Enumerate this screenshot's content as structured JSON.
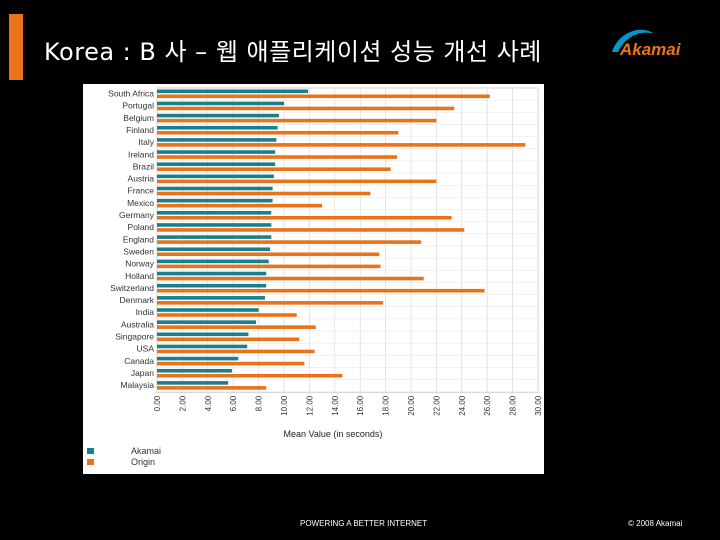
{
  "slide": {
    "title": "Korea : B 사 – 웹 애플리케이션 성능 개선 사례",
    "accent_color": "#e8731a",
    "logo_text": "Akamai",
    "logo_color": "#0099cc",
    "footer_tagline": "POWERING A BETTER INTERNET",
    "footer_copyright": "© 2008 Akamai"
  },
  "chart_data": {
    "type": "bar",
    "orientation": "horizontal",
    "xlabel": "Mean Value (in seconds)",
    "xlim": [
      0,
      30
    ],
    "x_ticks": [
      "0.00",
      "2.00",
      "4.00",
      "6.00",
      "8.00",
      "10.00",
      "12.00",
      "14.00",
      "16.00",
      "18.00",
      "20.00",
      "22.00",
      "24.00",
      "26.00",
      "28.00",
      "30.00"
    ],
    "grid": true,
    "legend_position": "bottom-left",
    "categories": [
      "South Africa",
      "Portugal",
      "Belgium",
      "Finland",
      "Italy",
      "Ireland",
      "Brazil",
      "Austria",
      "France",
      "Mexico",
      "Germany",
      "Poland",
      "England",
      "Sweden",
      "Norway",
      "Holland",
      "Switzerland",
      "Denmark",
      "India",
      "Australia",
      "Singapore",
      "USA",
      "Canada",
      "Japan",
      "Malaysia"
    ],
    "series": [
      {
        "name": "Akamai",
        "color": "#1a7f8c",
        "values": [
          11.9,
          10.0,
          9.6,
          9.5,
          9.4,
          9.3,
          9.3,
          9.2,
          9.1,
          9.1,
          9.0,
          9.0,
          9.0,
          8.9,
          8.8,
          8.6,
          8.6,
          8.5,
          8.0,
          7.8,
          7.2,
          7.1,
          6.4,
          5.9,
          5.6
        ]
      },
      {
        "name": "Origin",
        "color": "#e8731a",
        "values": [
          26.2,
          23.4,
          22.0,
          19.0,
          29.0,
          18.9,
          18.4,
          22.0,
          16.8,
          13.0,
          23.2,
          24.2,
          20.8,
          17.5,
          17.6,
          21.0,
          25.8,
          17.8,
          11.0,
          12.5,
          11.2,
          12.4,
          11.6,
          14.6,
          8.6
        ]
      }
    ]
  }
}
